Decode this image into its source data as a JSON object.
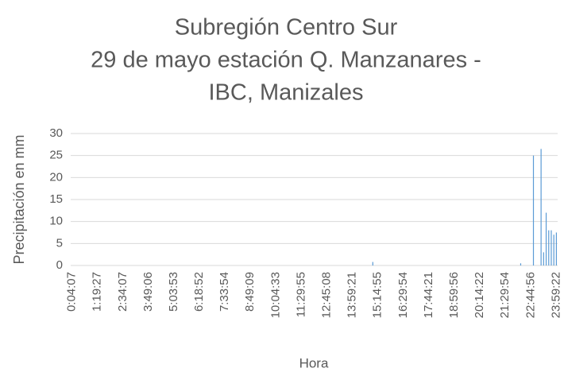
{
  "chart_data": {
    "type": "bar",
    "title": [
      "Subregión Centro Sur",
      "29 de mayo estación Q. Manzanares -",
      "IBC, Manizales"
    ],
    "x_label": "Hora",
    "y_label": "Precipitación en mm",
    "color": "#5b9bd5",
    "grid": true,
    "ylim": [
      0,
      30
    ],
    "yticks": [
      0,
      5,
      10,
      15,
      20,
      25,
      30
    ],
    "categories": [
      "0:04:07",
      null,
      null,
      null,
      null,
      null,
      null,
      null,
      null,
      null,
      "1:19:27",
      null,
      null,
      null,
      null,
      null,
      null,
      null,
      null,
      null,
      "2:34:07",
      null,
      null,
      null,
      null,
      null,
      null,
      null,
      null,
      null,
      "3:49:06",
      null,
      null,
      null,
      null,
      null,
      null,
      null,
      null,
      null,
      "5:03:53",
      null,
      null,
      null,
      null,
      null,
      null,
      null,
      null,
      null,
      "6:18:52",
      null,
      null,
      null,
      null,
      null,
      null,
      null,
      null,
      null,
      "7:33:54",
      null,
      null,
      null,
      null,
      null,
      null,
      null,
      null,
      null,
      "8:49:09",
      null,
      null,
      null,
      null,
      null,
      null,
      null,
      null,
      null,
      "10:04:33",
      null,
      null,
      null,
      null,
      null,
      null,
      null,
      null,
      null,
      "11:29:55",
      null,
      null,
      null,
      null,
      null,
      null,
      null,
      null,
      null,
      "12:45:08",
      null,
      null,
      null,
      null,
      null,
      null,
      null,
      null,
      null,
      "13:59:21",
      null,
      null,
      null,
      null,
      null,
      null,
      null,
      null,
      null,
      "15:14:55",
      null,
      null,
      null,
      null,
      null,
      null,
      null,
      null,
      null,
      "16:29:54",
      null,
      null,
      null,
      null,
      null,
      null,
      null,
      null,
      null,
      "17:44:21",
      null,
      null,
      null,
      null,
      null,
      null,
      null,
      null,
      null,
      "18:59:56",
      null,
      null,
      null,
      null,
      null,
      null,
      null,
      null,
      null,
      "20:14:22",
      null,
      null,
      null,
      null,
      null,
      null,
      null,
      null,
      null,
      "21:29:54",
      null,
      null,
      null,
      null,
      null,
      null,
      null,
      null,
      null,
      "22:44:56",
      null,
      null,
      null,
      null,
      null,
      null,
      null,
      null,
      null,
      "23:59:22"
    ],
    "values": [
      0,
      0,
      0,
      0,
      0,
      0,
      0,
      0,
      0,
      0,
      0,
      0,
      0,
      0,
      0,
      0,
      0,
      0,
      0,
      0,
      0,
      0,
      0,
      0,
      0,
      0,
      0,
      0,
      0,
      0,
      0,
      0,
      0,
      0,
      0,
      0,
      0,
      0,
      0,
      0,
      0,
      0,
      0,
      0,
      0,
      0,
      0,
      0,
      0,
      0,
      0,
      0,
      0,
      0,
      0,
      0,
      0,
      0,
      0,
      0,
      0,
      0,
      0,
      0,
      0,
      0,
      0,
      0,
      0,
      0,
      0,
      0,
      0,
      0,
      0,
      0,
      0,
      0,
      0,
      0,
      0,
      0,
      0,
      0,
      0,
      0,
      0,
      0,
      0,
      0,
      0,
      0,
      0,
      0,
      0,
      0,
      0,
      0,
      0,
      0,
      0,
      0,
      0,
      0,
      0,
      0,
      0,
      0,
      0,
      0,
      0,
      0,
      0,
      0,
      0,
      0,
      0,
      0,
      0.8,
      0,
      0,
      0,
      0,
      0,
      0,
      0,
      0,
      0,
      0,
      0,
      0,
      0,
      0,
      0,
      0,
      0,
      0,
      0,
      0,
      0,
      0,
      0,
      0,
      0,
      0,
      0,
      0,
      0,
      0,
      0,
      0,
      0,
      0,
      0,
      0,
      0,
      0,
      0,
      0,
      0,
      0,
      0,
      0,
      0,
      0,
      0,
      0,
      0,
      0,
      0,
      0,
      0,
      0,
      0,
      0,
      0,
      0.5,
      0,
      0,
      0,
      0,
      25,
      0,
      0,
      26.5,
      3,
      12,
      8,
      8,
      7,
      7.5
    ]
  }
}
